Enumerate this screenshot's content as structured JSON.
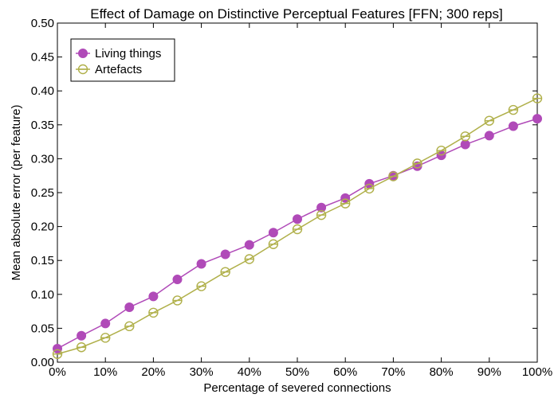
{
  "chart_data": {
    "type": "line",
    "title": "Effect of Damage on Distinctive Perceptual Features [FFN; 300 reps]",
    "xlabel": "Percentage of severed connections",
    "ylabel": "Mean absolute error (per feature)",
    "x": [
      0,
      5,
      10,
      15,
      20,
      25,
      30,
      35,
      40,
      45,
      50,
      55,
      60,
      65,
      70,
      75,
      80,
      85,
      90,
      95,
      100
    ],
    "xlim": [
      0,
      100
    ],
    "ylim": [
      0,
      0.5
    ],
    "xticks": [
      0,
      10,
      20,
      30,
      40,
      50,
      60,
      70,
      80,
      90,
      100
    ],
    "xtick_labels": [
      "0%",
      "10%",
      "20%",
      "30%",
      "40%",
      "50%",
      "60%",
      "70%",
      "80%",
      "90%",
      "100%"
    ],
    "yticks": [
      0,
      0.05,
      0.1,
      0.15,
      0.2,
      0.25,
      0.3,
      0.35,
      0.4,
      0.45,
      0.5
    ],
    "ytick_labels": [
      "0.00",
      "0.05",
      "0.10",
      "0.15",
      "0.20",
      "0.25",
      "0.30",
      "0.35",
      "0.40",
      "0.45",
      "0.50"
    ],
    "grid": false,
    "legend_position": "top-left",
    "series": [
      {
        "name": "Living things",
        "color": "#b04ab8",
        "marker": "filled-circle",
        "values": [
          0.02,
          0.039,
          0.057,
          0.081,
          0.097,
          0.122,
          0.145,
          0.159,
          0.173,
          0.191,
          0.211,
          0.228,
          0.242,
          0.263,
          0.275,
          0.289,
          0.305,
          0.321,
          0.334,
          0.348,
          0.359
        ]
      },
      {
        "name": "Artefacts",
        "color": "#b0b04a",
        "marker": "hollow-circle-crossed",
        "values": [
          0.012,
          0.022,
          0.036,
          0.053,
          0.073,
          0.091,
          0.112,
          0.133,
          0.152,
          0.174,
          0.196,
          0.217,
          0.234,
          0.256,
          0.274,
          0.293,
          0.312,
          0.333,
          0.356,
          0.372,
          0.389
        ]
      }
    ]
  }
}
